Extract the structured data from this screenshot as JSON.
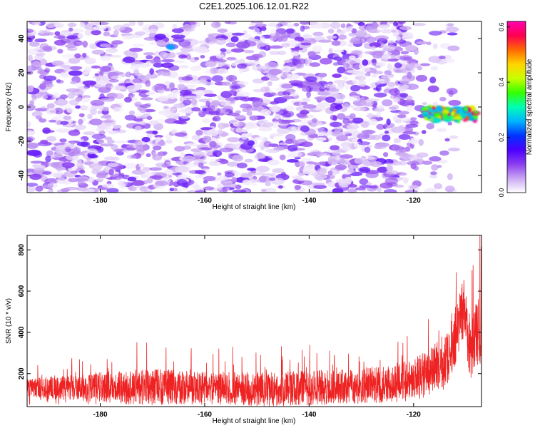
{
  "chart_data": [
    {
      "type": "heatmap",
      "title": "C2E1.2025.106.12.01.R22",
      "xlabel": "Height of straight line (km)",
      "ylabel": "Frequency (Hz)",
      "xlim": [
        -194,
        -107
      ],
      "ylim": [
        -50,
        50
      ],
      "x_ticks": [
        -180,
        -160,
        -140,
        -120
      ],
      "y_ticks": [
        -40,
        -20,
        0,
        20,
        40
      ],
      "colorbar": {
        "label": "Normalized spectral amplitude",
        "range": [
          0.0,
          0.62
        ],
        "ticks": [
          0.0,
          0.2,
          0.4,
          0.6
        ],
        "colormap": [
          "#ffffff",
          "#c9a6f2",
          "#8a3df0",
          "#4a00ff",
          "#0033ff",
          "#00b4ff",
          "#00ffb4",
          "#33ff00",
          "#c8ff00",
          "#ffd400",
          "#ff6a00",
          "#ff0050",
          "#ff00b0"
        ]
      },
      "features": [
        {
          "x_range": [
            -194,
            -112
          ],
          "y_range": [
            -50,
            50
          ],
          "amplitude_range": [
            0.0,
            0.1
          ],
          "note": "diffuse purple noise"
        },
        {
          "x": -166.5,
          "y": 35,
          "amplitude": 0.25
        },
        {
          "x_range": [
            -118,
            -108
          ],
          "y_range": [
            -8,
            0
          ],
          "amplitude_range": [
            0.25,
            0.62
          ]
        }
      ]
    },
    {
      "type": "line",
      "xlabel": "Height of straight line (km)",
      "ylabel": "SNR (10 * v/v)",
      "xlim": [
        -194,
        -107
      ],
      "ylim": [
        40,
        870
      ],
      "x_ticks": [
        -180,
        -160,
        -140,
        -120
      ],
      "y_ticks": [
        200,
        400,
        600,
        800
      ],
      "series": [
        {
          "color": "#ee2222",
          "envelope": [
            {
              "x": -194,
              "base": 130,
              "peak": 230
            },
            {
              "x": -180,
              "base": 135,
              "peak": 300
            },
            {
              "x": -170,
              "base": 135,
              "peak": 340
            },
            {
              "x": -160,
              "base": 130,
              "peak": 300
            },
            {
              "x": -150,
              "base": 125,
              "peak": 310
            },
            {
              "x": -140,
              "base": 130,
              "peak": 320
            },
            {
              "x": -130,
              "base": 140,
              "peak": 330
            },
            {
              "x": -122,
              "base": 160,
              "peak": 380
            },
            {
              "x": -118,
              "base": 190,
              "peak": 440
            },
            {
              "x": -114,
              "base": 260,
              "peak": 560
            },
            {
              "x": -112,
              "base": 380,
              "peak": 700
            },
            {
              "x": -110.5,
              "base": 520,
              "peak": 860
            },
            {
              "x": -109,
              "base": 300,
              "peak": 640
            },
            {
              "x": -107.5,
              "base": 420,
              "peak": 840
            }
          ]
        }
      ]
    }
  ]
}
